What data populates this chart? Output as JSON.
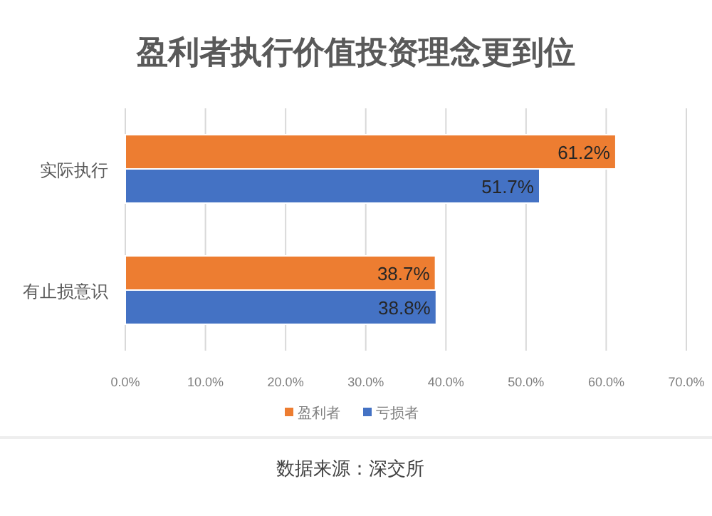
{
  "chart_data": {
    "type": "bar",
    "orientation": "horizontal",
    "title": "盈利者执行价值投资理念更到位",
    "categories": [
      "实际执行",
      "有止损意识"
    ],
    "series": [
      {
        "name": "盈利者",
        "color": "#ed7d31",
        "values": [
          61.2,
          38.7
        ],
        "value_labels": [
          "61.2%",
          "38.7%"
        ]
      },
      {
        "name": "亏损者",
        "color": "#4472c4",
        "values": [
          51.7,
          38.8
        ],
        "value_labels": [
          "51.7%",
          "38.8%"
        ]
      }
    ],
    "xlim": [
      0,
      70
    ],
    "xticks": [
      {
        "value": 0,
        "label": "0.0%"
      },
      {
        "value": 10,
        "label": "10.0%"
      },
      {
        "value": 20,
        "label": "20.0%"
      },
      {
        "value": 30,
        "label": "30.0%"
      },
      {
        "value": 40,
        "label": "40.0%"
      },
      {
        "value": 50,
        "label": "50.0%"
      },
      {
        "value": 60,
        "label": "60.0%"
      },
      {
        "value": 70,
        "label": "70.0%"
      }
    ],
    "grid": "x",
    "legend": "bottom",
    "annotations": [
      "数据来源：深交所"
    ]
  }
}
